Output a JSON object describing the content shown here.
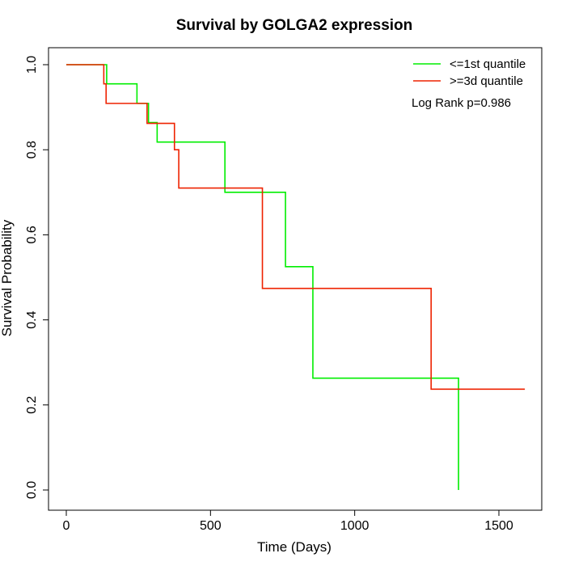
{
  "chart_data": {
    "type": "line",
    "title": "Survival by GOLGA2 expression",
    "xlabel": "Time (Days)",
    "ylabel": "Survival Probability",
    "xlim": [
      0,
      1650
    ],
    "ylim": [
      0,
      1.05
    ],
    "x_ticks": [
      0,
      500,
      1000,
      1500
    ],
    "y_ticks": [
      0.0,
      0.2,
      0.4,
      0.6,
      0.8,
      1.0
    ],
    "x_tick_labels": [
      "0",
      "500",
      "1000",
      "1500"
    ],
    "y_tick_labels": [
      "0.0",
      "0.2",
      "0.4",
      "0.6",
      "0.8",
      "1.0"
    ],
    "annotation": "Log Rank p=0.986",
    "legend_position": "top-right",
    "grid": false,
    "series": [
      {
        "name": "<=1st quantile",
        "color": "#00ee00",
        "step": true,
        "points": [
          [
            0,
            1.0
          ],
          [
            140,
            0.955
          ],
          [
            245,
            0.909
          ],
          [
            285,
            0.864
          ],
          [
            315,
            0.818
          ],
          [
            550,
            0.7
          ],
          [
            760,
            0.525
          ],
          [
            855,
            0.263
          ],
          [
            1360,
            0.0
          ]
        ]
      },
      {
        "name": ">=3d quantile",
        "color": "#ee2200",
        "step": true,
        "end_x": 1590,
        "points": [
          [
            0,
            1.0
          ],
          [
            130,
            0.955
          ],
          [
            138,
            0.909
          ],
          [
            280,
            0.862
          ],
          [
            375,
            0.8
          ],
          [
            390,
            0.71
          ],
          [
            680,
            0.474
          ],
          [
            1265,
            0.237
          ]
        ]
      }
    ]
  }
}
